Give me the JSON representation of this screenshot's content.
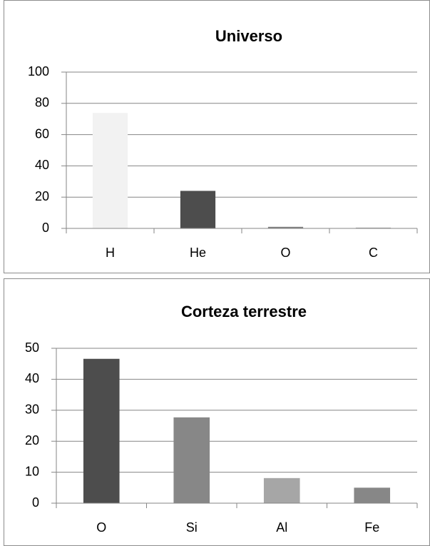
{
  "chart_data": [
    {
      "type": "bar",
      "title": "Universo",
      "categories": [
        "H",
        "He",
        "O",
        "C"
      ],
      "values": [
        73.9,
        24,
        1,
        0.5
      ],
      "colors": [
        "#f2f2f2",
        "#4d4d4d",
        "#7f7f7f",
        "#a6a6a6"
      ],
      "ylim": [
        0,
        100
      ],
      "yticks": [
        0,
        20,
        40,
        60,
        80,
        100
      ],
      "grid": true
    },
    {
      "type": "bar",
      "title": "Corteza terrestre",
      "categories": [
        "O",
        "Si",
        "Al",
        "Fe"
      ],
      "values": [
        46.6,
        27.7,
        8.1,
        5
      ],
      "colors": [
        "#4d4d4d",
        "#878787",
        "#a6a6a6",
        "#878787"
      ],
      "ylim": [
        0,
        50
      ],
      "yticks": [
        0,
        10,
        20,
        30,
        40,
        50
      ],
      "grid": true
    }
  ]
}
